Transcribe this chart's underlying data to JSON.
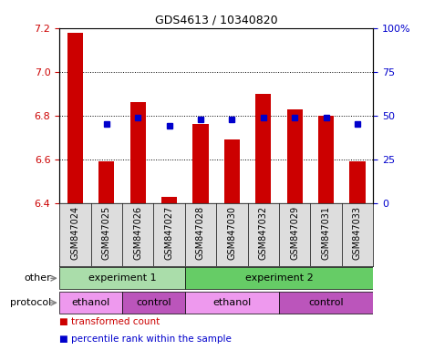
{
  "title": "GDS4613 / 10340820",
  "samples": [
    "GSM847024",
    "GSM847025",
    "GSM847026",
    "GSM847027",
    "GSM847028",
    "GSM847030",
    "GSM847032",
    "GSM847029",
    "GSM847031",
    "GSM847033"
  ],
  "bar_values": [
    7.18,
    6.59,
    6.86,
    6.43,
    6.76,
    6.69,
    6.9,
    6.83,
    6.8,
    6.59
  ],
  "dot_values": [
    null,
    45,
    49,
    44,
    48,
    48,
    49,
    49,
    49,
    45
  ],
  "ylim_left": [
    6.4,
    7.2
  ],
  "ylim_right": [
    0,
    100
  ],
  "yticks_left": [
    6.4,
    6.6,
    6.8,
    7.0,
    7.2
  ],
  "yticks_right": [
    0,
    25,
    50,
    75,
    100
  ],
  "bar_color": "#cc0000",
  "dot_color": "#0000cc",
  "bar_baseline": 6.4,
  "exp1_color": "#aaddaa",
  "exp2_color": "#66cc66",
  "ethanol_color": "#ee99ee",
  "control_color": "#bb55bb",
  "legend_bar_label": "transformed count",
  "legend_dot_label": "percentile rank within the sample",
  "exp1_samples": [
    0,
    1,
    2,
    3
  ],
  "exp2_samples": [
    4,
    5,
    6,
    7,
    8,
    9
  ],
  "ethanol1_samples": [
    0,
    1
  ],
  "control1_samples": [
    2,
    3
  ],
  "ethanol2_samples": [
    4,
    5,
    6
  ],
  "control2_samples": [
    7,
    8,
    9
  ]
}
